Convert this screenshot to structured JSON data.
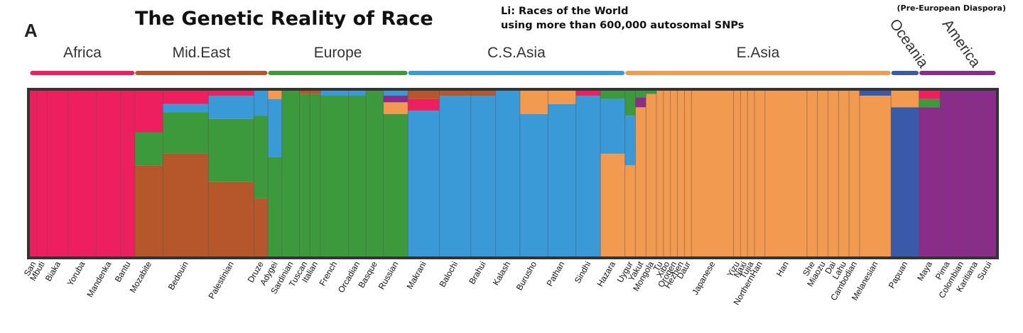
{
  "header": {
    "title": "The Genetic Reality of Race",
    "subtitle_line1": "Li:  Races of the World",
    "subtitle_line2": "using more than 600,000 autosomal SNPs",
    "note": "(Pre-European Diaspora)",
    "panel_label": "A"
  },
  "chart_data": {
    "type": "stacked-bar",
    "colors": {
      "Africa": "#ee1f5e",
      "Mid.East": "#b5572b",
      "Europe": "#3c9a3c",
      "C.S.Asia": "#3a9ad8",
      "E.Asia": "#f39a51",
      "Oceania": "#3a59a8",
      "America": "#8a2c8a",
      "frame": "#333333"
    },
    "regions": [
      {
        "name": "Africa",
        "color_key": "Africa",
        "start": 0,
        "end": 1.5
      },
      {
        "name": "Mid.East",
        "color_key": "Mid.East",
        "start": 1.5,
        "end": 3.4
      },
      {
        "name": "Europe",
        "color_key": "Europe",
        "start": 3.4,
        "end": 5.4
      },
      {
        "name": "C.S.Asia",
        "color_key": "C.S.Asia",
        "start": 5.4,
        "end": 8.5
      },
      {
        "name": "E.Asia",
        "color_key": "E.Asia",
        "start": 8.5,
        "end": 12.3
      },
      {
        "name": "Oceania",
        "color_key": "Oceania",
        "start": 12.3,
        "end": 12.7
      },
      {
        "name": "America",
        "color_key": "America",
        "start": 12.7,
        "end": 13.8
      }
    ],
    "populations": [
      {
        "name": "San",
        "start": 0,
        "end": 0.1,
        "fractions": {
          "Africa": 1.0
        }
      },
      {
        "name": "Mbuti",
        "start": 0.1,
        "end": 0.25,
        "fractions": {
          "Africa": 1.0
        }
      },
      {
        "name": "Biaka",
        "start": 0.25,
        "end": 0.55,
        "fractions": {
          "Africa": 1.0
        }
      },
      {
        "name": "Yoruba",
        "start": 0.55,
        "end": 0.95,
        "fractions": {
          "Africa": 1.0
        }
      },
      {
        "name": "Mandenka",
        "start": 0.95,
        "end": 1.3,
        "fractions": {
          "Africa": 1.0
        }
      },
      {
        "name": "Bantu",
        "start": 1.3,
        "end": 1.5,
        "fractions": {
          "Africa": 1.0
        }
      },
      {
        "name": "Mozabite",
        "start": 1.5,
        "end": 1.9,
        "fractions": {
          "Mid.East": 0.55,
          "Europe": 0.2,
          "Africa": 0.25
        }
      },
      {
        "name": "Bedouin",
        "start": 1.9,
        "end": 2.55,
        "fractions": {
          "Mid.East": 0.62,
          "Europe": 0.25,
          "C.S.Asia": 0.05,
          "Africa": 0.08
        }
      },
      {
        "name": "Palestinian",
        "start": 2.55,
        "end": 3.2,
        "fractions": {
          "Mid.East": 0.45,
          "Europe": 0.38,
          "C.S.Asia": 0.14,
          "Africa": 0.03
        }
      },
      {
        "name": "Druze",
        "start": 3.2,
        "end": 3.4,
        "fractions": {
          "Mid.East": 0.35,
          "Europe": 0.5,
          "C.S.Asia": 0.15
        }
      },
      {
        "name": "Adygei",
        "start": 3.4,
        "end": 3.6,
        "fractions": {
          "Europe": 0.6,
          "C.S.Asia": 0.35,
          "E.Asia": 0.05
        }
      },
      {
        "name": "Sardinian",
        "start": 3.6,
        "end": 3.85,
        "fractions": {
          "Europe": 1.0
        }
      },
      {
        "name": "Tuscan",
        "start": 3.85,
        "end": 4.0,
        "fractions": {
          "Europe": 0.98,
          "Mid.East": 0.02
        }
      },
      {
        "name": "Italian",
        "start": 4.0,
        "end": 4.15,
        "fractions": {
          "Europe": 0.98,
          "Mid.East": 0.02
        }
      },
      {
        "name": "French",
        "start": 4.15,
        "end": 4.55,
        "fractions": {
          "Europe": 0.97,
          "C.S.Asia": 0.03
        }
      },
      {
        "name": "Orcadian",
        "start": 4.55,
        "end": 4.8,
        "fractions": {
          "Europe": 0.97,
          "C.S.Asia": 0.03
        }
      },
      {
        "name": "Basque",
        "start": 4.8,
        "end": 5.05,
        "fractions": {
          "Europe": 1.0
        }
      },
      {
        "name": "Russian",
        "start": 5.05,
        "end": 5.4,
        "fractions": {
          "Europe": 0.86,
          "E.Asia": 0.07,
          "America": 0.04,
          "C.S.Asia": 0.03
        }
      },
      {
        "name": "Makrani",
        "start": 5.4,
        "end": 5.85,
        "fractions": {
          "C.S.Asia": 0.88,
          "Africa": 0.07,
          "Mid.East": 0.05
        }
      },
      {
        "name": "Balochi",
        "start": 5.85,
        "end": 6.3,
        "fractions": {
          "C.S.Asia": 0.97,
          "Mid.East": 0.03
        }
      },
      {
        "name": "Brahui",
        "start": 6.3,
        "end": 6.65,
        "fractions": {
          "C.S.Asia": 0.97,
          "Mid.East": 0.03
        }
      },
      {
        "name": "Kalash",
        "start": 6.65,
        "end": 7.0,
        "fractions": {
          "C.S.Asia": 1.0
        }
      },
      {
        "name": "Burusho",
        "start": 7.0,
        "end": 7.4,
        "fractions": {
          "C.S.Asia": 0.86,
          "E.Asia": 0.14
        }
      },
      {
        "name": "Pathan",
        "start": 7.4,
        "end": 7.8,
        "fractions": {
          "C.S.Asia": 0.92,
          "E.Asia": 0.08
        }
      },
      {
        "name": "Sindhi",
        "start": 7.8,
        "end": 8.15,
        "fractions": {
          "C.S.Asia": 0.97,
          "Africa": 0.03
        }
      },
      {
        "name": "Hazara",
        "start": 8.15,
        "end": 8.5,
        "fractions": {
          "E.Asia": 0.62,
          "C.S.Asia": 0.33,
          "Europe": 0.05
        }
      },
      {
        "name": "Uygur",
        "start": 8.5,
        "end": 8.65,
        "fractions": {
          "E.Asia": 0.55,
          "C.S.Asia": 0.3,
          "Europe": 0.15
        }
      },
      {
        "name": "Yakut",
        "start": 8.65,
        "end": 8.8,
        "fractions": {
          "E.Asia": 0.9,
          "America": 0.06,
          "Europe": 0.04
        }
      },
      {
        "name": "Mongola",
        "start": 8.8,
        "end": 8.95,
        "fractions": {
          "E.Asia": 0.98,
          "Europe": 0.02
        }
      },
      {
        "name": "Tu",
        "start": 8.95,
        "end": 9.05,
        "fractions": {
          "E.Asia": 1.0
        }
      },
      {
        "name": "Xibo",
        "start": 9.05,
        "end": 9.15,
        "fractions": {
          "E.Asia": 1.0
        }
      },
      {
        "name": "Oroqen",
        "start": 9.15,
        "end": 9.25,
        "fractions": {
          "E.Asia": 1.0
        }
      },
      {
        "name": "Hezhen",
        "start": 9.25,
        "end": 9.35,
        "fractions": {
          "E.Asia": 1.0
        }
      },
      {
        "name": "Daur",
        "start": 9.35,
        "end": 9.45,
        "fractions": {
          "E.Asia": 1.0
        }
      },
      {
        "name": "Japanese",
        "start": 9.45,
        "end": 10.05,
        "fractions": {
          "E.Asia": 1.0
        }
      },
      {
        "name": "Yizu",
        "start": 10.05,
        "end": 10.15,
        "fractions": {
          "E.Asia": 1.0
        }
      },
      {
        "name": "Naxi",
        "start": 10.15,
        "end": 10.25,
        "fractions": {
          "E.Asia": 1.0
        }
      },
      {
        "name": "Tujia",
        "start": 10.25,
        "end": 10.35,
        "fractions": {
          "E.Asia": 1.0
        }
      },
      {
        "name": "NorthernHan",
        "start": 10.35,
        "end": 10.5,
        "fractions": {
          "E.Asia": 1.0
        }
      },
      {
        "name": "Han",
        "start": 10.5,
        "end": 11.1,
        "fractions": {
          "E.Asia": 1.0
        }
      },
      {
        "name": "She",
        "start": 11.1,
        "end": 11.25,
        "fractions": {
          "E.Asia": 1.0
        }
      },
      {
        "name": "Miaozu",
        "start": 11.25,
        "end": 11.4,
        "fractions": {
          "E.Asia": 1.0
        }
      },
      {
        "name": "Dai",
        "start": 11.4,
        "end": 11.55,
        "fractions": {
          "E.Asia": 1.0
        }
      },
      {
        "name": "Lahu",
        "start": 11.55,
        "end": 11.7,
        "fractions": {
          "E.Asia": 1.0
        }
      },
      {
        "name": "Cambodian",
        "start": 11.7,
        "end": 11.85,
        "fractions": {
          "E.Asia": 1.0
        }
      },
      {
        "name": "Melanesian",
        "start": 11.85,
        "end": 12.3,
        "fractions": {
          "E.Asia": 0.97,
          "Oceania": 0.03
        }
      },
      {
        "name": "Papuan",
        "start": 12.3,
        "end": 12.7,
        "fractions": {
          "Oceania": 0.9,
          "E.Asia": 0.1
        }
      },
      {
        "name": "Maya",
        "start": 12.7,
        "end": 13.0,
        "fractions": {
          "America": 0.9,
          "Europe": 0.05,
          "Africa": 0.05
        }
      },
      {
        "name": "Pima",
        "start": 13.0,
        "end": 13.2,
        "fractions": {
          "America": 1.0
        }
      },
      {
        "name": "Colombian",
        "start": 13.2,
        "end": 13.4,
        "fractions": {
          "America": 1.0
        }
      },
      {
        "name": "Karitiana",
        "start": 13.4,
        "end": 13.6,
        "fractions": {
          "America": 1.0
        }
      },
      {
        "name": "Surui",
        "start": 13.6,
        "end": 13.8,
        "fractions": {
          "America": 1.0
        }
      }
    ],
    "xlabel": "",
    "ylabel": "",
    "ylim": [
      0,
      1
    ],
    "grid": false,
    "legend": "none"
  }
}
